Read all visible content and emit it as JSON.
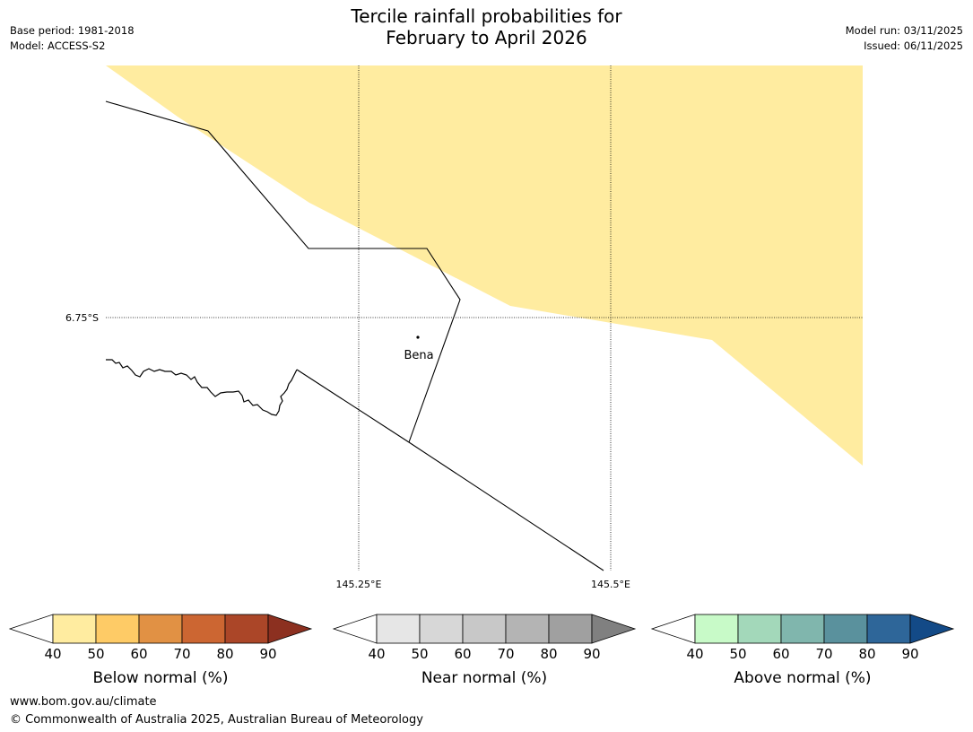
{
  "header": {
    "title_line1": "Tercile rainfall probabilities for",
    "title_line2": "February to April 2026",
    "base_period": "Base period: 1981-2018",
    "model": "Model: ACCESS-S2",
    "model_run": "Model run: 03/11/2025",
    "issued": "Issued: 06/11/2025"
  },
  "map": {
    "lat_label": "6.75°S",
    "lon_labels": [
      "145.25°E",
      "145.5°E"
    ],
    "place_label": "Bena",
    "shading_color": "#ffeca0"
  },
  "legends": [
    {
      "title": "Below normal (%)",
      "ticks": [
        "40",
        "50",
        "60",
        "70",
        "80",
        "90"
      ],
      "colors": [
        "#ffeca0",
        "#fecb66",
        "#e19144",
        "#cc6632",
        "#ab4628",
        "#8c3020"
      ]
    },
    {
      "title": "Near normal (%)",
      "ticks": [
        "40",
        "50",
        "60",
        "70",
        "80",
        "90"
      ],
      "colors": [
        "#e6e6e6",
        "#d7d7d7",
        "#c8c8c8",
        "#b4b4b4",
        "#a0a0a0",
        "#808080"
      ]
    },
    {
      "title": "Above normal (%)",
      "ticks": [
        "40",
        "50",
        "60",
        "70",
        "80",
        "90"
      ],
      "colors": [
        "#c8fac8",
        "#a3d8ba",
        "#80b6ad",
        "#5a919d",
        "#2e6699",
        "#134a87"
      ]
    }
  ],
  "footer": {
    "url": "www.bom.gov.au/climate",
    "copyright": "© Commonwealth of Australia 2025, Australian Bureau of Meteorology"
  }
}
